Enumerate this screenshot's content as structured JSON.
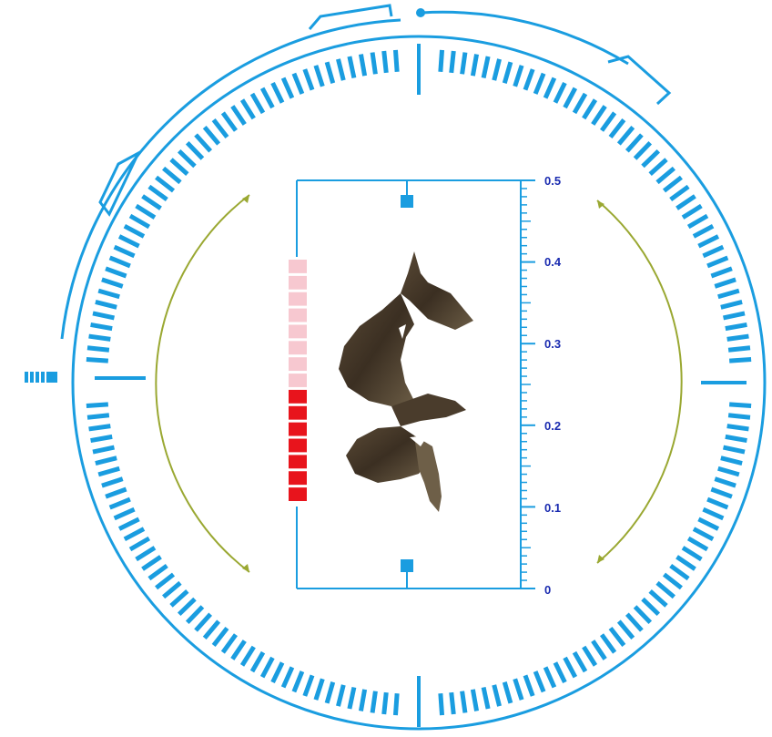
{
  "colors": {
    "dial": "#1a9de0",
    "arrow": "#9aa832",
    "label": "#1a2bb0",
    "level_on": "#e8141c",
    "level_off": "#f7c8d0",
    "handle": "#1a9de0"
  },
  "icons": {
    "left_marker": "striped-marker-icon",
    "rotate_left": "rotate-arc-arrow-icon",
    "rotate_right": "rotate-arc-arrow-icon",
    "top_pin": "pin-dot-icon"
  },
  "scale": {
    "labels": [
      "0.5",
      "0.4",
      "0.3",
      "0.2",
      "0.1",
      "0"
    ],
    "min": 0,
    "max": 0.5
  },
  "level_meter": {
    "segments_total": 15,
    "segments_active": 7
  },
  "specimen": {
    "kind": "twisted-seed-pod-photo"
  }
}
